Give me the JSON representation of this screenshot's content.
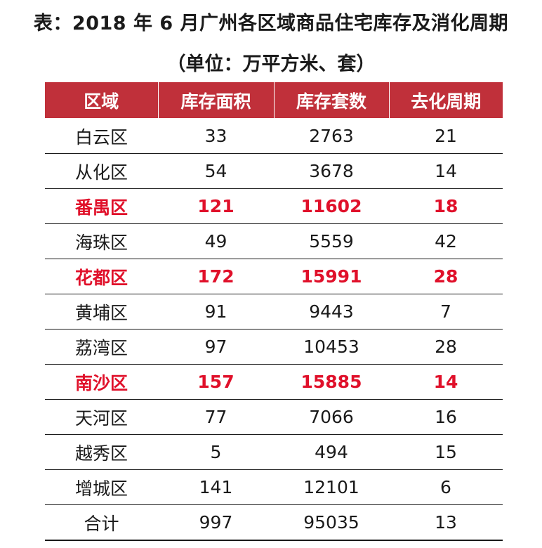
{
  "title": "表：2018 年 6 月广州各区域商品住宅库存及消化周期",
  "subtitle": "（单位：万平方米、套）",
  "table": {
    "headers": [
      "区域",
      "库存面积",
      "库存套数",
      "去化周期"
    ],
    "rows": [
      {
        "district": "白云区",
        "area": "33",
        "units": "2763",
        "cycle": "21",
        "highlight": false
      },
      {
        "district": "从化区",
        "area": "54",
        "units": "3678",
        "cycle": "14",
        "highlight": false
      },
      {
        "district": "番禺区",
        "area": "121",
        "units": "11602",
        "cycle": "18",
        "highlight": true
      },
      {
        "district": "海珠区",
        "area": "49",
        "units": "5559",
        "cycle": "42",
        "highlight": false
      },
      {
        "district": "花都区",
        "area": "172",
        "units": "15991",
        "cycle": "28",
        "highlight": true
      },
      {
        "district": "黄埔区",
        "area": "91",
        "units": "9443",
        "cycle": "7",
        "highlight": false
      },
      {
        "district": "荔湾区",
        "area": "97",
        "units": "10453",
        "cycle": "28",
        "highlight": false
      },
      {
        "district": "南沙区",
        "area": "157",
        "units": "15885",
        "cycle": "14",
        "highlight": true
      },
      {
        "district": "天河区",
        "area": "77",
        "units": "7066",
        "cycle": "16",
        "highlight": false
      },
      {
        "district": "越秀区",
        "area": "5",
        "units": "494",
        "cycle": "15",
        "highlight": false
      },
      {
        "district": "增城区",
        "area": "141",
        "units": "12101",
        "cycle": "6",
        "highlight": false
      },
      {
        "district": "合计",
        "area": "997",
        "units": "95035",
        "cycle": "13",
        "highlight": false
      }
    ]
  },
  "colors": {
    "header_bg": "#c0303a",
    "highlight_text": "#e0102a"
  }
}
